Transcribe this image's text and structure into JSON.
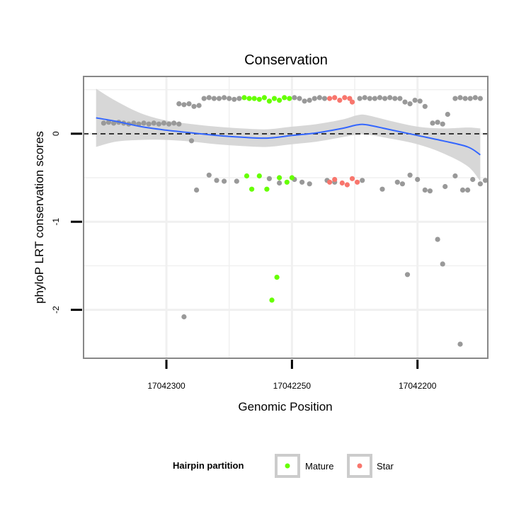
{
  "chart_data": {
    "type": "scatter",
    "title": "Conservation",
    "xlabel": "Genomic Position",
    "ylabel": "phyloP LRT conservation scores",
    "x_reversed": true,
    "xlim": [
      17042172,
      17042333
    ],
    "ylim": [
      -2.55,
      0.65
    ],
    "x_ticks": [
      17042300,
      17042250,
      17042200
    ],
    "x_tick_labels": [
      "17042300",
      "17042250",
      "17042200"
    ],
    "y_ticks": [
      0,
      -1,
      -2
    ],
    "y_tick_labels": [
      "0",
      "-1",
      "-2"
    ],
    "reference_line": {
      "y": 0,
      "style": "dashed"
    },
    "grid": true,
    "colors": {
      "background": "#ffffff",
      "panel_border": "#888888",
      "grid": "#f0f0f0",
      "other_points": "#999999",
      "mature": "#66ff00",
      "star": "#f8766d",
      "smooth_line": "#3366ff",
      "confidence_band": "#d3d3d3"
    },
    "legend": {
      "title": "Hairpin partition",
      "position": "bottom",
      "entries": [
        {
          "label": "Mature",
          "color": "#66ff00"
        },
        {
          "label": "Star",
          "color": "#f8766d"
        }
      ]
    },
    "series": [
      {
        "name": "",
        "color": "#999999",
        "points": [
          [
            17042325,
            0.12
          ],
          [
            17042323,
            0.13
          ],
          [
            17042321,
            0.12
          ],
          [
            17042319,
            0.13
          ],
          [
            17042317,
            0.12
          ],
          [
            17042315,
            0.11
          ],
          [
            17042313,
            0.12
          ],
          [
            17042311,
            0.11
          ],
          [
            17042309,
            0.12
          ],
          [
            17042307,
            0.11
          ],
          [
            17042305,
            0.12
          ],
          [
            17042303,
            0.11
          ],
          [
            17042301,
            0.12
          ],
          [
            17042299,
            0.11
          ],
          [
            17042297,
            0.12
          ],
          [
            17042295,
            0.11
          ],
          [
            17042295,
            0.34
          ],
          [
            17042293,
            0.33
          ],
          [
            17042291,
            0.34
          ],
          [
            17042289,
            0.31
          ],
          [
            17042287,
            0.32
          ],
          [
            17042285,
            0.4
          ],
          [
            17042283,
            0.41
          ],
          [
            17042281,
            0.4
          ],
          [
            17042279,
            0.4
          ],
          [
            17042277,
            0.41
          ],
          [
            17042275,
            0.4
          ],
          [
            17042273,
            0.39
          ],
          [
            17042271,
            0.4
          ],
          [
            17042249,
            0.41
          ],
          [
            17042247,
            0.4
          ],
          [
            17042245,
            0.37
          ],
          [
            17042243,
            0.38
          ],
          [
            17042241,
            0.4
          ],
          [
            17042239,
            0.41
          ],
          [
            17042237,
            0.4
          ],
          [
            17042223,
            0.4
          ],
          [
            17042221,
            0.41
          ],
          [
            17042219,
            0.4
          ],
          [
            17042217,
            0.4
          ],
          [
            17042215,
            0.41
          ],
          [
            17042213,
            0.4
          ],
          [
            17042211,
            0.41
          ],
          [
            17042209,
            0.4
          ],
          [
            17042207,
            0.4
          ],
          [
            17042205,
            0.36
          ],
          [
            17042203,
            0.34
          ],
          [
            17042201,
            0.38
          ],
          [
            17042199,
            0.37
          ],
          [
            17042197,
            0.31
          ],
          [
            17042194,
            0.12
          ],
          [
            17042192,
            0.13
          ],
          [
            17042190,
            0.11
          ],
          [
            17042188,
            0.22
          ],
          [
            17042185,
            0.4
          ],
          [
            17042183,
            0.41
          ],
          [
            17042181,
            0.4
          ],
          [
            17042179,
            0.4
          ],
          [
            17042177,
            0.41
          ],
          [
            17042175,
            0.4
          ],
          [
            17042290,
            -0.08
          ],
          [
            17042288,
            -0.64
          ],
          [
            17042283,
            -0.47
          ],
          [
            17042280,
            -0.53
          ],
          [
            17042277,
            -0.54
          ],
          [
            17042272,
            -0.54
          ],
          [
            17042259,
            -0.51
          ],
          [
            17042255,
            -0.56
          ],
          [
            17042249,
            -0.52
          ],
          [
            17042246,
            -0.55
          ],
          [
            17042243,
            -0.57
          ],
          [
            17042236,
            -0.53
          ],
          [
            17042233,
            -0.55
          ],
          [
            17042222,
            -0.53
          ],
          [
            17042214,
            -0.63
          ],
          [
            17042208,
            -0.55
          ],
          [
            17042206,
            -0.57
          ],
          [
            17042203,
            -0.47
          ],
          [
            17042200,
            -0.52
          ],
          [
            17042197,
            -0.64
          ],
          [
            17042195,
            -0.65
          ],
          [
            17042189,
            -0.6
          ],
          [
            17042185,
            -0.48
          ],
          [
            17042182,
            -0.64
          ],
          [
            17042180,
            -0.64
          ],
          [
            17042178,
            -0.52
          ],
          [
            17042175,
            -0.57
          ],
          [
            17042173,
            -0.53
          ],
          [
            17042293,
            -2.08
          ],
          [
            17042204,
            -1.6
          ],
          [
            17042192,
            -1.2
          ],
          [
            17042190,
            -1.48
          ],
          [
            17042183,
            -2.39
          ]
        ]
      },
      {
        "name": "Mature",
        "color": "#66ff00",
        "points": [
          [
            17042269,
            0.41
          ],
          [
            17042267,
            0.4
          ],
          [
            17042265,
            0.4
          ],
          [
            17042263,
            0.39
          ],
          [
            17042261,
            0.41
          ],
          [
            17042259,
            0.37
          ],
          [
            17042257,
            0.4
          ],
          [
            17042255,
            0.38
          ],
          [
            17042253,
            0.41
          ],
          [
            17042251,
            0.4
          ],
          [
            17042268,
            -0.48
          ],
          [
            17042266,
            -0.63
          ],
          [
            17042263,
            -0.48
          ],
          [
            17042260,
            -0.63
          ],
          [
            17042255,
            -0.5
          ],
          [
            17042252,
            -0.55
          ],
          [
            17042250,
            -0.5
          ],
          [
            17042256,
            -1.63
          ],
          [
            17042258,
            -1.89
          ]
        ]
      },
      {
        "name": "Star",
        "color": "#f8766d",
        "points": [
          [
            17042235,
            0.4
          ],
          [
            17042233,
            0.41
          ],
          [
            17042231,
            0.38
          ],
          [
            17042229,
            0.41
          ],
          [
            17042227,
            0.4
          ],
          [
            17042226,
            0.36
          ],
          [
            17042235,
            -0.55
          ],
          [
            17042233,
            -0.52
          ],
          [
            17042230,
            -0.56
          ],
          [
            17042228,
            -0.58
          ],
          [
            17042226,
            -0.51
          ],
          [
            17042224,
            -0.55
          ]
        ]
      }
    ],
    "smooth": {
      "x": [
        17042328,
        17042320,
        17042310,
        17042300,
        17042290,
        17042280,
        17042270,
        17042260,
        17042250,
        17042240,
        17042230,
        17042224,
        17042220,
        17042210,
        17042200,
        17042190,
        17042180,
        17042175
      ],
      "y": [
        0.18,
        0.14,
        0.08,
        0.04,
        0.01,
        -0.02,
        -0.04,
        -0.05,
        -0.02,
        0.01,
        0.06,
        0.1,
        0.1,
        0.04,
        -0.02,
        -0.08,
        -0.15,
        -0.24
      ],
      "se": [
        0.33,
        0.23,
        0.15,
        0.11,
        0.1,
        0.1,
        0.1,
        0.1,
        0.1,
        0.1,
        0.1,
        0.11,
        0.11,
        0.1,
        0.1,
        0.14,
        0.22,
        0.3
      ]
    }
  }
}
